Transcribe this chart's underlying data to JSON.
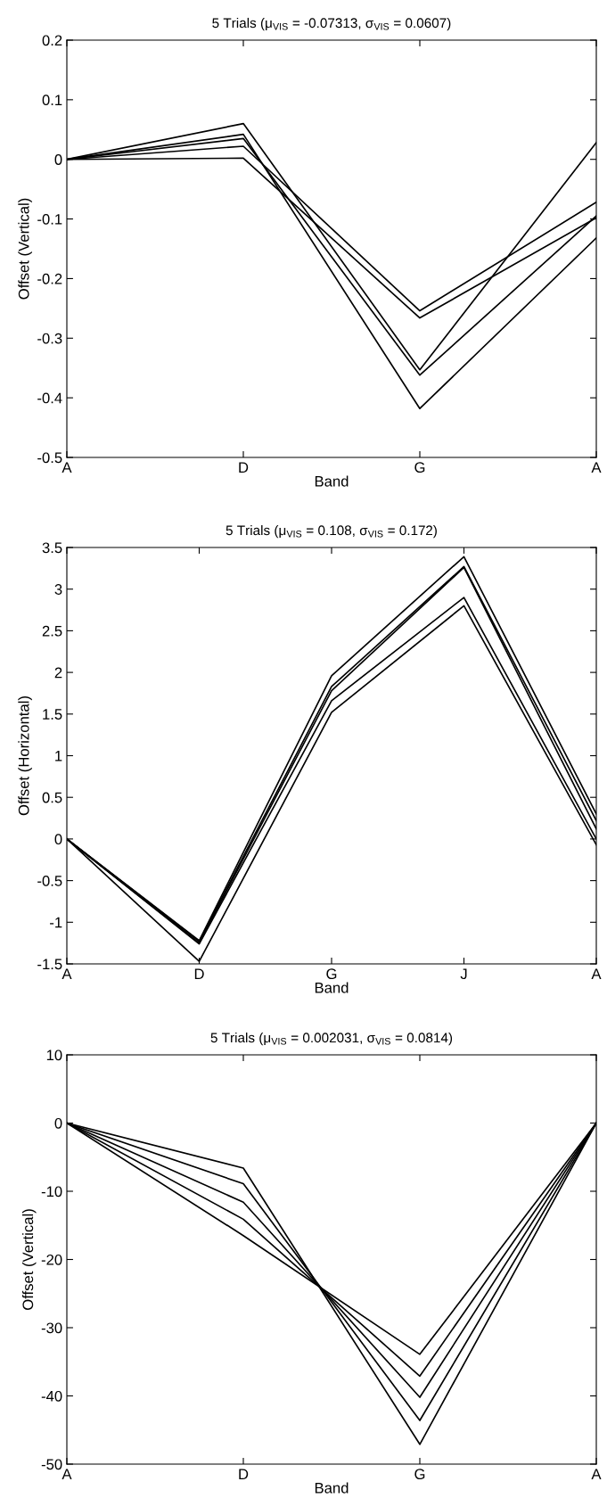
{
  "chart_data": [
    {
      "type": "line",
      "title": "5 Trials (μ$_{VIS}$ = -0.07313, σ$_{VIS}$ = 0.0607)",
      "xlabel": "Band",
      "ylabel": "Offset (Vertical)",
      "categories": [
        "A",
        "D",
        "G",
        "A"
      ],
      "ylim": [
        -0.5,
        0.2
      ],
      "yticks": [
        -0.5,
        -0.4,
        -0.3,
        -0.2,
        -0.1,
        0,
        0.1,
        0.2
      ],
      "grid": false,
      "legend": false,
      "series": [
        {
          "color": "#000000",
          "values": [
            0,
            0.06,
            -0.353,
            0.028
          ]
        },
        {
          "color": "#000000",
          "values": [
            0,
            0.042,
            -0.418,
            -0.132
          ]
        },
        {
          "color": "#000000",
          "values": [
            0,
            0.035,
            -0.362,
            -0.095
          ]
        },
        {
          "color": "#000000",
          "values": [
            0,
            0.022,
            -0.254,
            -0.072
          ]
        },
        {
          "color": "#000000",
          "values": [
            0,
            0.002,
            -0.266,
            -0.098
          ]
        }
      ]
    },
    {
      "type": "line",
      "title": "5 Trials (μ$_{VIS}$ = 0.108, σ$_{VIS}$ = 0.172)",
      "xlabel": "Band",
      "ylabel": "Offset (Horizontal)",
      "categories": [
        "A",
        "D",
        "G",
        "J",
        "A"
      ],
      "ylim": [
        -1.5,
        3.5
      ],
      "yticks": [
        -1.5,
        -1,
        -0.5,
        0,
        0.5,
        1,
        1.5,
        2,
        2.5,
        3,
        3.5
      ],
      "grid": false,
      "legend": false,
      "series": [
        {
          "color": "#000000",
          "values": [
            0,
            -1.22,
            1.96,
            3.39,
            0.3
          ]
        },
        {
          "color": "#000000",
          "values": [
            0,
            -1.23,
            1.83,
            3.27,
            0.22
          ]
        },
        {
          "color": "#000000",
          "values": [
            0,
            -1.25,
            1.78,
            3.26,
            0.12
          ]
        },
        {
          "color": "#000000",
          "values": [
            0,
            -1.26,
            1.66,
            2.9,
            0.0
          ]
        },
        {
          "color": "#000000",
          "values": [
            0,
            -1.47,
            1.52,
            2.8,
            -0.07
          ]
        }
      ]
    },
    {
      "type": "line",
      "title": "5 Trials (μ$_{VIS}$ = 0.002031, σ$_{VIS}$ = 0.0814)",
      "xlabel": "Band",
      "ylabel": "Offset (Vertical)",
      "categories": [
        "A",
        "D",
        "G",
        "A"
      ],
      "ylim": [
        -50,
        10
      ],
      "yticks": [
        -50,
        -40,
        -30,
        -20,
        -10,
        0,
        10
      ],
      "grid": false,
      "legend": false,
      "series": [
        {
          "color": "#000000",
          "values": [
            0,
            -6.6,
            -47.1,
            0
          ]
        },
        {
          "color": "#000000",
          "values": [
            0,
            -8.9,
            -43.6,
            0
          ]
        },
        {
          "color": "#000000",
          "values": [
            0,
            -11.6,
            -40.2,
            0
          ]
        },
        {
          "color": "#000000",
          "values": [
            0,
            -14.1,
            -37.1,
            0
          ]
        },
        {
          "color": "#000000",
          "values": [
            0,
            -16.5,
            -33.9,
            0
          ]
        }
      ]
    }
  ]
}
